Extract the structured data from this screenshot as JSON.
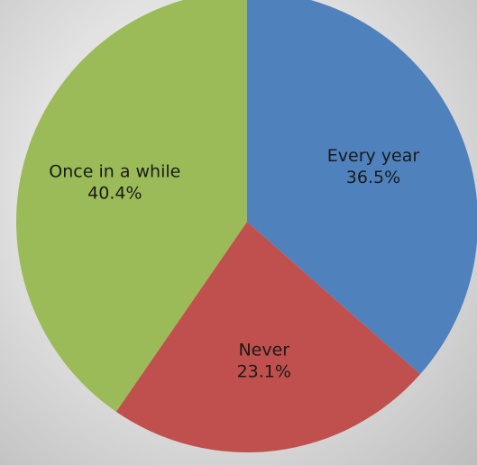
{
  "chart_data": {
    "type": "pie",
    "title": "",
    "slices": [
      {
        "label": "Every year",
        "value": 36.5,
        "value_label": "36.5%",
        "color": "#4f81bd"
      },
      {
        "label": "Never",
        "value": 23.1,
        "value_label": "23.1%",
        "color": "#c0504d"
      },
      {
        "label": "Once in a while",
        "value": 40.4,
        "value_label": "40.4%",
        "color": "#9bbb59"
      }
    ],
    "start": "12 o'clock",
    "direction": "clockwise",
    "legend": "none",
    "labels_inside_slices": true
  }
}
